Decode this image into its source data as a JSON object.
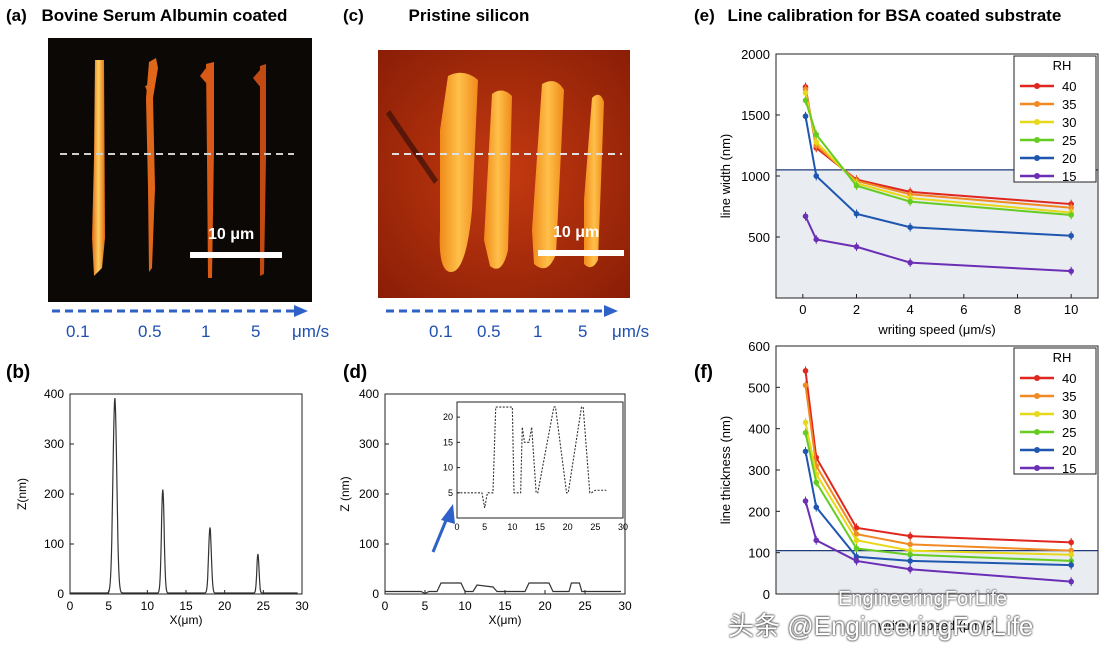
{
  "panels": {
    "a": {
      "letter": "(a)",
      "title": "Bovine Serum Albumin coated",
      "scale_label": "10 μm"
    },
    "c": {
      "letter": "(c)",
      "title": "Pristine silicon",
      "scale_label": "10 μm"
    },
    "e": {
      "letter": "(e)",
      "title": "Line calibration for BSA coated substrate"
    },
    "b": {
      "letter": "(b)"
    },
    "d": {
      "letter": "(d)"
    },
    "f": {
      "letter": "(f)"
    }
  },
  "speed_labels": [
    "0.1",
    "0.5",
    "1",
    "5",
    "μm/s"
  ],
  "colors": {
    "arrow": "#2f62c8",
    "series_40": "#e0271f",
    "series_35": "#f08a24",
    "series_30": "#e8d81a",
    "series_25": "#66cc22",
    "series_20": "#1e56b0",
    "series_15": "#6a2fb5"
  },
  "watermark": "头条 @EngineeringForLife",
  "watermark_faint": "EngineeringForLife",
  "chart_data": [
    {
      "id": "b",
      "type": "line",
      "xlabel": "X(μm)",
      "ylabel": "Z(nm)",
      "xlim": [
        0,
        30
      ],
      "ylim": [
        0,
        400
      ],
      "xticks": [
        0,
        5,
        10,
        15,
        20,
        25,
        30
      ],
      "yticks": [
        0,
        100,
        200,
        300,
        400
      ],
      "peaks": [
        {
          "x": 5.8,
          "y": 390,
          "w": 0.35
        },
        {
          "x": 12.0,
          "y": 207,
          "w": 0.25
        },
        {
          "x": 18.1,
          "y": 131,
          "w": 0.25
        },
        {
          "x": 24.3,
          "y": 78,
          "w": 0.2
        }
      ],
      "x_range": [
        0,
        29.5
      ]
    },
    {
      "id": "d",
      "type": "line",
      "xlabel": "X(μm)",
      "ylabel": "Z (nm)",
      "xlim": [
        0,
        30
      ],
      "ylim": [
        0,
        400
      ],
      "xticks": [
        0,
        5,
        10,
        15,
        20,
        25,
        30
      ],
      "yticks": [
        0,
        100,
        200,
        300,
        400
      ],
      "series": [
        {
          "name": "",
          "x": [
            0,
            4.5,
            5,
            5.5,
            6.5,
            7,
            9.5,
            10,
            11,
            11.5,
            13.5,
            14,
            17.5,
            18,
            20.5,
            21,
            23,
            23.3,
            24.3,
            24.6,
            29.5
          ],
          "y": [
            5,
            5,
            1,
            5,
            5,
            22,
            22,
            5,
            5,
            18,
            14,
            5,
            5,
            22,
            22,
            5,
            5,
            22,
            22,
            5,
            5
          ]
        }
      ],
      "inset": {
        "xlim": [
          0,
          30
        ],
        "ylim": [
          0,
          23
        ],
        "xticks": [
          0,
          5,
          10,
          15,
          20,
          25,
          30
        ],
        "yticks": [
          5,
          10,
          15,
          20
        ],
        "x": [
          0,
          4.5,
          5,
          5.5,
          6.5,
          7,
          8,
          8.5,
          10,
          10.3,
          11.5,
          11.8,
          12.2,
          13,
          13.5,
          14.3,
          14.6,
          17.5,
          17.8,
          19.8,
          20.1,
          22.5,
          22.8,
          24,
          24.3,
          25,
          27
        ],
        "y": [
          5,
          5,
          2,
          5,
          5,
          22,
          22,
          22,
          22,
          5,
          5,
          18,
          15,
          15,
          18,
          5,
          5,
          22,
          22,
          5,
          5,
          22,
          22,
          5,
          5,
          5.5,
          5.5
        ]
      }
    },
    {
      "id": "e",
      "type": "line",
      "xlabel": "writing speed (μm/s)",
      "ylabel": "line width (nm)",
      "xlim": [
        -1,
        11
      ],
      "ylim": [
        0,
        2000
      ],
      "xticks": [
        0,
        2,
        4,
        6,
        8,
        10
      ],
      "yticks": [
        500,
        1000,
        1500,
        2000
      ],
      "ytick_labels": [
        "500",
        "1000",
        "1500",
        "2000"
      ],
      "hline": 1050,
      "legend_title": "RH",
      "x": [
        0.1,
        0.5,
        2,
        4,
        10
      ],
      "series": [
        {
          "name": "40",
          "values": [
            1730,
            1230,
            970,
            870,
            770
          ]
        },
        {
          "name": "35",
          "values": [
            1710,
            1250,
            960,
            850,
            740
          ]
        },
        {
          "name": "30",
          "values": [
            1680,
            1280,
            940,
            820,
            700
          ]
        },
        {
          "name": "25",
          "values": [
            1620,
            1340,
            920,
            790,
            680
          ]
        },
        {
          "name": "20",
          "values": [
            1490,
            1000,
            690,
            580,
            510
          ]
        },
        {
          "name": "15",
          "values": [
            670,
            480,
            420,
            290,
            220
          ]
        }
      ]
    },
    {
      "id": "f",
      "type": "line",
      "xlabel": "writing speed (μm/s)",
      "ylabel": "line thickness (nm)",
      "xlim": [
        -1,
        11
      ],
      "ylim": [
        0,
        600
      ],
      "yticks": [
        0,
        100,
        200,
        300,
        400,
        500,
        600
      ],
      "hline": 105,
      "legend_title": "RH",
      "x": [
        0.1,
        0.5,
        2,
        4,
        10
      ],
      "series": [
        {
          "name": "40",
          "values": [
            540,
            330,
            160,
            140,
            125
          ]
        },
        {
          "name": "35",
          "values": [
            505,
            310,
            145,
            120,
            105
          ]
        },
        {
          "name": "30",
          "values": [
            415,
            290,
            130,
            105,
            95
          ]
        },
        {
          "name": "25",
          "values": [
            390,
            270,
            110,
            95,
            80
          ]
        },
        {
          "name": "20",
          "values": [
            345,
            210,
            90,
            80,
            70
          ]
        },
        {
          "name": "15",
          "values": [
            225,
            130,
            80,
            60,
            30
          ]
        }
      ]
    }
  ]
}
